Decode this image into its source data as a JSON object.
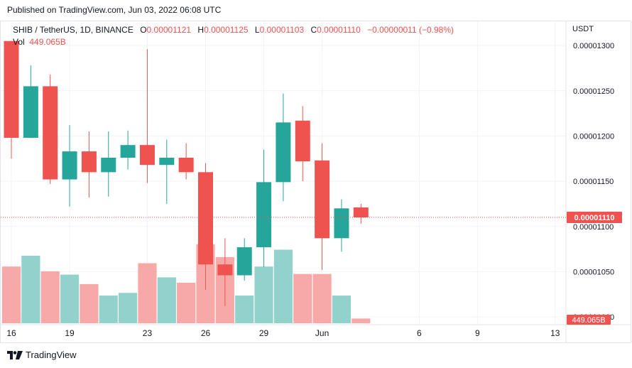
{
  "published": "Published on TradingView.com, Jun 03, 2022 06:08 UTC",
  "legend": {
    "symbol": "SHIB / TetherUS, 1D, BINANCE",
    "o_label": "O",
    "o_value": "0.00001121",
    "h_label": "H",
    "h_value": "0.00001125",
    "l_label": "L",
    "l_value": "0.00001103",
    "c_label": "C",
    "c_value": "0.00001110",
    "change": "−0.00000011 (−0.98%)",
    "vol_label": "Vol",
    "vol_value": "449.065B"
  },
  "currency": "USDT",
  "brand": "TradingView",
  "colors": {
    "up": "#26a69a",
    "down": "#ef5350",
    "up_volume": "#92d2cc",
    "down_volume": "#f7a9a7",
    "grid": "#f0f3fa",
    "price_line": "#ef5350"
  },
  "chart_data": {
    "type": "candlestick",
    "x_tick_labels": [
      "16",
      "19",
      "23",
      "26",
      "29",
      "Jun",
      "6",
      "9",
      "13"
    ],
    "y_tick_labels": [
      "0.00001300",
      "0.00001250",
      "0.00001200",
      "0.00001150",
      "0.00001100",
      "0.00001050",
      "0.00001000"
    ],
    "y_ticks": [
      1.3e-05,
      1.25e-05,
      1.2e-05,
      1.15e-05,
      1.1e-05,
      1.05e-05,
      1e-05
    ],
    "ylim": [
      9.93e-06,
      1.315e-05
    ],
    "last_price_label": "0.00001110",
    "last_price": 1.11e-05,
    "volume_label": "449.065B",
    "grid": true,
    "candles": [
      {
        "o": 1.305e-05,
        "h": 1.305e-05,
        "l": 1.175e-05,
        "c": 1.198e-05
      },
      {
        "o": 1.198e-05,
        "h": 1.278e-05,
        "l": 1.198e-05,
        "c": 1.255e-05
      },
      {
        "o": 1.255e-05,
        "h": 1.268e-05,
        "l": 1.147e-05,
        "c": 1.152e-05
      },
      {
        "o": 1.152e-05,
        "h": 1.212e-05,
        "l": 1.122e-05,
        "c": 1.183e-05
      },
      {
        "o": 1.183e-05,
        "h": 1.205e-05,
        "l": 1.132e-05,
        "c": 1.16e-05
      },
      {
        "o": 1.16e-05,
        "h": 1.205e-05,
        "l": 1.133e-05,
        "c": 1.176e-05
      },
      {
        "o": 1.176e-05,
        "h": 1.206e-05,
        "l": 1.163e-05,
        "c": 1.19e-05
      },
      {
        "o": 1.19e-05,
        "h": 1.296e-05,
        "l": 1.148e-05,
        "c": 1.168e-05
      },
      {
        "o": 1.168e-05,
        "h": 1.196e-05,
        "l": 1.125e-05,
        "c": 1.176e-05
      },
      {
        "o": 1.176e-05,
        "h": 1.192e-05,
        "l": 1.152e-05,
        "c": 1.16e-05
      },
      {
        "o": 1.16e-05,
        "h": 1.17e-05,
        "l": 1.03e-05,
        "c": 1.058e-05
      },
      {
        "o": 1.058e-05,
        "h": 1.087e-05,
        "l": 1.012e-05,
        "c": 1.046e-05
      },
      {
        "o": 1.046e-05,
        "h": 1.087e-05,
        "l": 1.04e-05,
        "c": 1.077e-05
      },
      {
        "o": 1.077e-05,
        "h": 1.185e-05,
        "l": 1.055e-05,
        "c": 1.149e-05
      },
      {
        "o": 1.149e-05,
        "h": 1.247e-05,
        "l": 1.128e-05,
        "c": 1.215e-05
      },
      {
        "o": 1.217e-05,
        "h": 1.233e-05,
        "l": 1.15e-05,
        "c": 1.172e-05
      },
      {
        "o": 1.173e-05,
        "h": 1.192e-05,
        "l": 1.052e-05,
        "c": 1.087e-05
      },
      {
        "o": 1.087e-05,
        "h": 1.13e-05,
        "l": 1.072e-05,
        "c": 1.12e-05
      },
      {
        "o": 1.121e-05,
        "h": 1.125e-05,
        "l": 1.103e-05,
        "c": 1.11e-05
      }
    ],
    "volume_fraction": [
      0.84,
      1.0,
      0.77,
      0.72,
      0.58,
      0.41,
      0.45,
      0.89,
      0.68,
      0.6,
      1.17,
      0.98,
      0.41,
      0.84,
      1.09,
      0.73,
      0.73,
      0.41,
      0.07
    ]
  }
}
